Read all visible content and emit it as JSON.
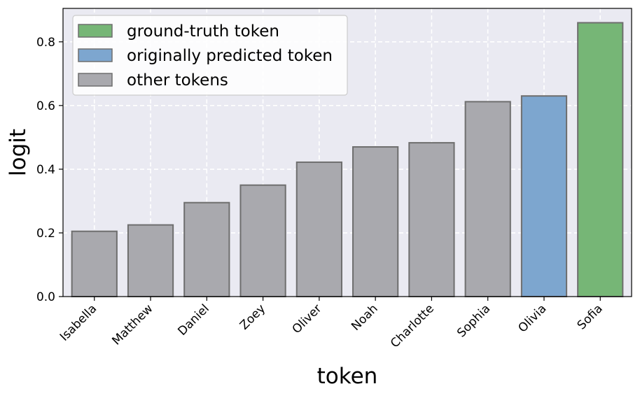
{
  "chart_data": {
    "type": "bar",
    "categories": [
      "Isabella",
      "Matthew",
      "Daniel",
      "Zoey",
      "Oliver",
      "Noah",
      "Charlotte",
      "Sophia",
      "Olivia",
      "Sofia"
    ],
    "values": [
      0.205,
      0.225,
      0.295,
      0.35,
      0.422,
      0.47,
      0.483,
      0.612,
      0.63,
      0.86
    ],
    "kinds": [
      "other",
      "other",
      "other",
      "other",
      "other",
      "other",
      "other",
      "other",
      "predicted",
      "truth"
    ],
    "xlabel": "token",
    "ylabel": "logit",
    "ylim": [
      0,
      0.905
    ],
    "yticks": [
      0.0,
      0.2,
      0.4,
      0.6,
      0.8
    ],
    "ytick_labels": [
      "0.0",
      "0.2",
      "0.4",
      "0.6",
      "0.8"
    ],
    "grid": true,
    "legend": {
      "placement": "top-left",
      "entries": [
        {
          "label": "ground-truth token",
          "kind": "truth"
        },
        {
          "label": "originally predicted token",
          "kind": "predicted"
        },
        {
          "label": "other tokens",
          "kind": "other"
        }
      ]
    },
    "colors": {
      "truth": "#76b676",
      "predicted": "#7da6cf",
      "other": "#a9a9ae",
      "edge": "#6e6e6e",
      "background": "#eaeaf2",
      "grid": "#ffffff"
    }
  }
}
